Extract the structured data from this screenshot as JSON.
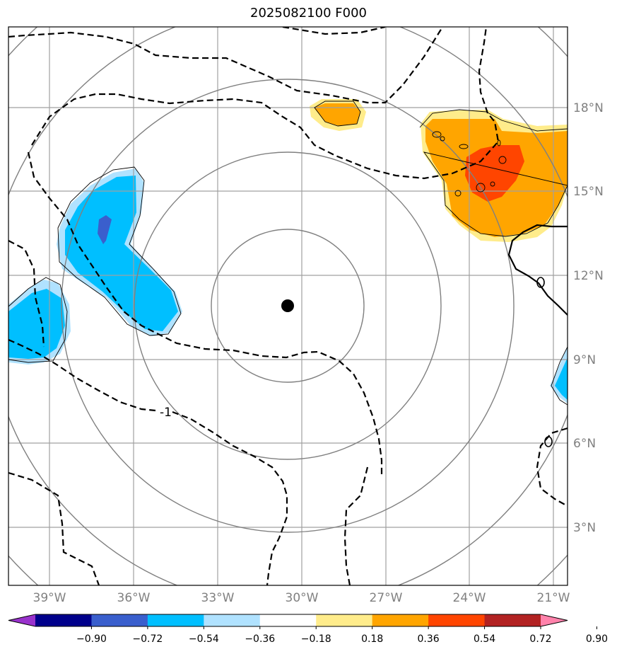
{
  "title": "2025082100 F000",
  "map": {
    "lon_labels": [
      "39°W",
      "36°W",
      "33°W",
      "30°W",
      "27°W",
      "24°W",
      "21°W"
    ],
    "lat_labels": [
      "18°N",
      "15°N",
      "12°N",
      "9°N",
      "6°N",
      "3°N"
    ],
    "center_marker": "storm-center-dot",
    "range_rings": 5,
    "contour_labels": [
      "-1",
      "0",
      "0"
    ]
  },
  "colorbar": {
    "ticks": [
      "−0.90",
      "−0.72",
      "−0.54",
      "−0.36",
      "−0.18",
      "0.18",
      "0.36",
      "0.54",
      "0.72",
      "0.90"
    ],
    "colors": [
      "#9932cc",
      "#00008b",
      "#3a5fcd",
      "#00bfff",
      "#b0e2ff",
      "#ffffff",
      "#ffec8b",
      "#ffa500",
      "#ff4500",
      "#b22222",
      "#ff82ab"
    ]
  }
}
